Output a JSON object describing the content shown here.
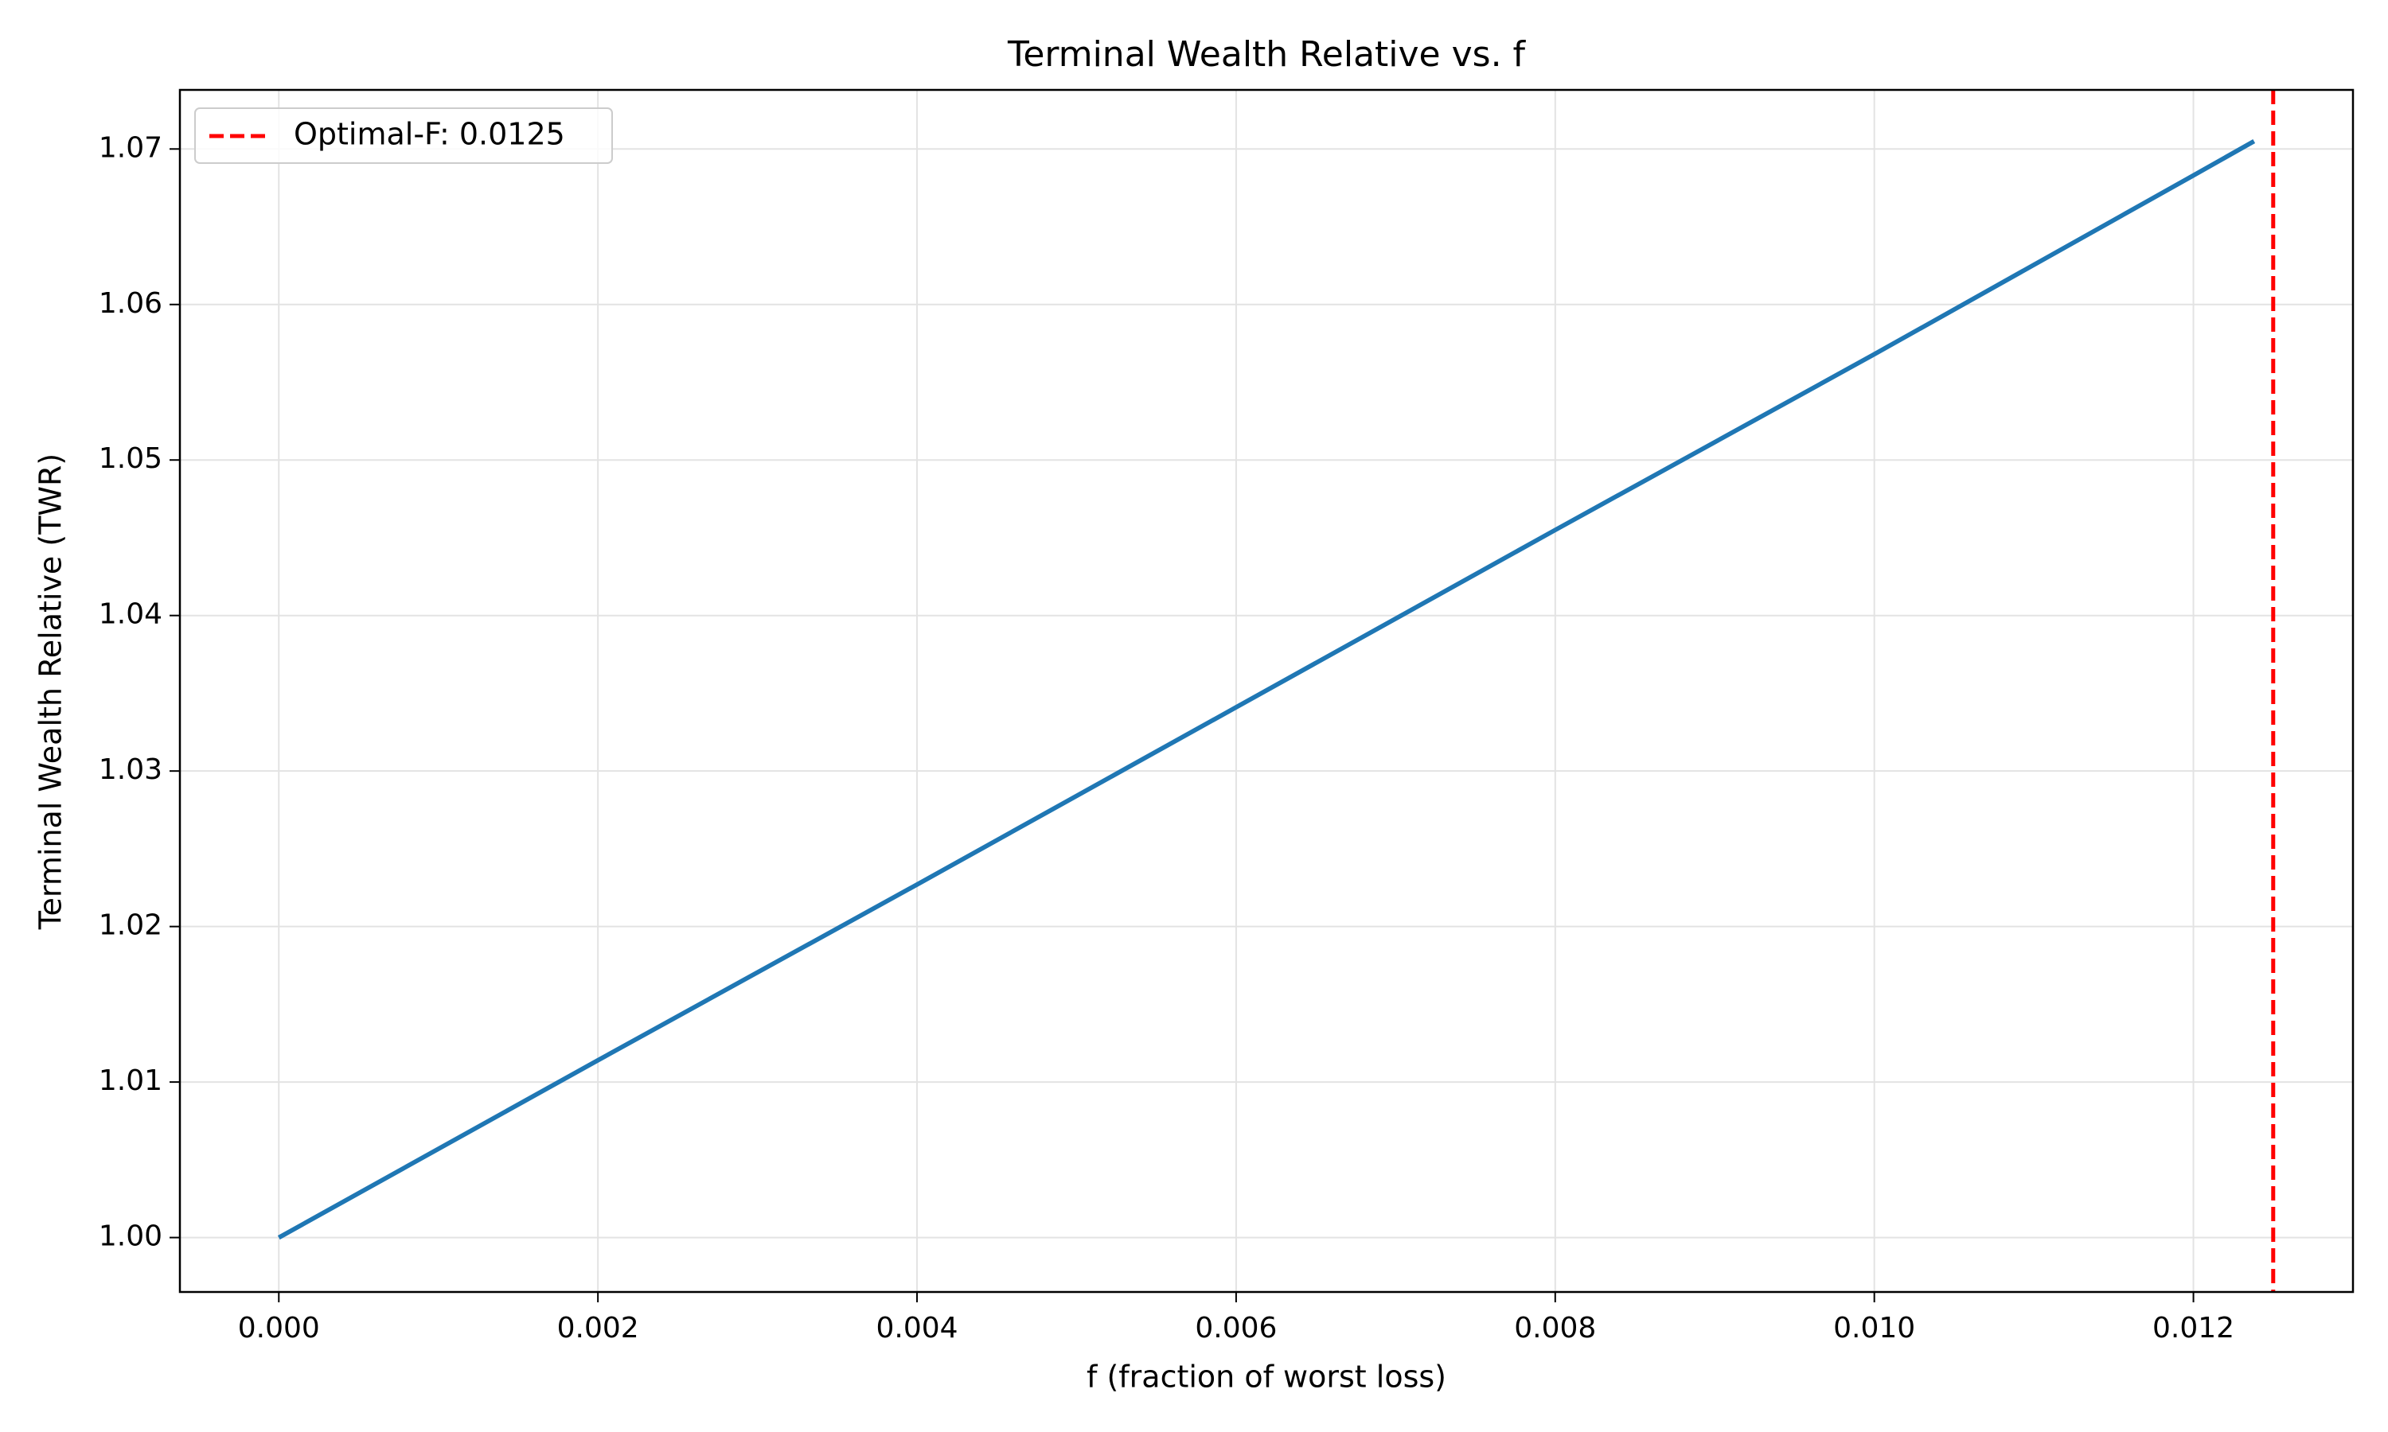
{
  "chart_data": {
    "type": "line",
    "title": "Terminal Wealth Relative vs. f",
    "xlabel": "f (fraction of worst loss)",
    "ylabel": "Terminal Wealth Relative (TWR)",
    "x": [
      0,
      0.002,
      0.004,
      0.006,
      0.008,
      0.01,
      0.012,
      0.01238
    ],
    "series": [
      {
        "name": "TWR",
        "color": "#1f77b4",
        "values": [
          1.0,
          1.0114,
          1.0227,
          1.0341,
          1.0455,
          1.0568,
          1.0683,
          1.0705
        ]
      }
    ],
    "vlines": [
      {
        "x": 0.0125,
        "label": "Optimal-F: 0.0125",
        "color": "#ff0000"
      }
    ],
    "xlim": [
      -0.00062,
      0.013
    ],
    "ylim": [
      0.9965,
      1.0738
    ],
    "xticks": [
      {
        "value": 0,
        "label": "0.000"
      },
      0.002,
      0.004,
      0.006,
      0.008,
      {
        "value": 0.01,
        "label": "0.010"
      },
      {
        "value": 0.012,
        "label": "0.012"
      }
    ],
    "yticks": [
      {
        "value": 1.0,
        "label": "1.00"
      },
      1.01,
      1.02,
      1.03,
      1.04,
      1.05,
      1.06,
      1.07
    ],
    "grid": true,
    "legend": "upper left"
  }
}
